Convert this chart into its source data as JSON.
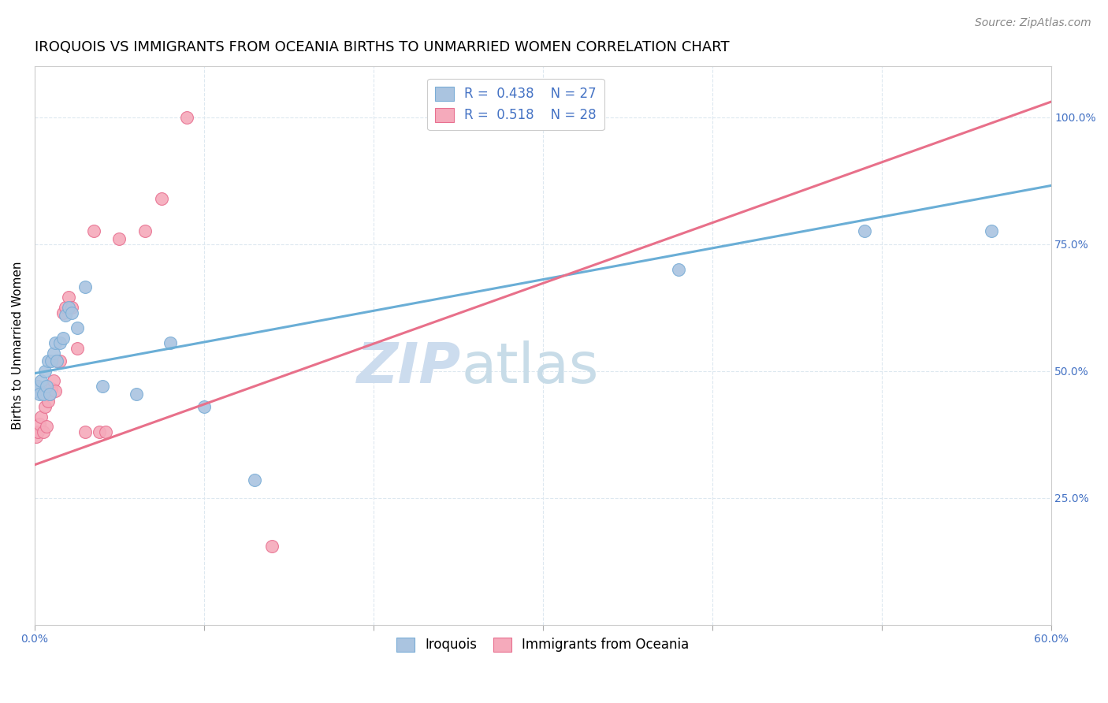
{
  "title": "IROQUOIS VS IMMIGRANTS FROM OCEANIA BIRTHS TO UNMARRIED WOMEN CORRELATION CHART",
  "source": "Source: ZipAtlas.com",
  "ylabel": "Births to Unmarried Women",
  "ytick_labels": [
    "25.0%",
    "50.0%",
    "75.0%",
    "100.0%"
  ],
  "ytick_values": [
    0.25,
    0.5,
    0.75,
    1.0
  ],
  "xlim": [
    0.0,
    0.6
  ],
  "ylim": [
    0.0,
    1.1
  ],
  "color_iroquois_fill": "#aac4e0",
  "color_iroquois_edge": "#7aadd6",
  "color_oceania_fill": "#f5aabb",
  "color_oceania_edge": "#e87090",
  "color_iroquois_line": "#6aaed6",
  "color_oceania_line": "#e8708a",
  "color_text_blue": "#4472c4",
  "watermark_color": "#ccdcee",
  "grid_color": "#dde8f0",
  "title_fontsize": 13,
  "axis_label_fontsize": 11,
  "tick_fontsize": 10,
  "legend_fontsize": 12,
  "source_fontsize": 10,
  "iroquois_x": [
    0.001,
    0.002,
    0.003,
    0.004,
    0.005,
    0.006,
    0.007,
    0.008,
    0.009,
    0.01,
    0.011,
    0.012,
    0.013,
    0.015,
    0.017,
    0.018,
    0.02,
    0.022,
    0.025,
    0.03,
    0.04,
    0.06,
    0.08,
    0.1,
    0.13,
    0.38,
    0.49,
    0.565
  ],
  "iroquois_y": [
    0.46,
    0.47,
    0.455,
    0.48,
    0.455,
    0.5,
    0.47,
    0.52,
    0.455,
    0.52,
    0.535,
    0.555,
    0.52,
    0.555,
    0.565,
    0.61,
    0.625,
    0.615,
    0.585,
    0.665,
    0.47,
    0.455,
    0.555,
    0.43,
    0.285,
    0.7,
    0.775,
    0.775
  ],
  "oceania_x": [
    0.001,
    0.002,
    0.003,
    0.004,
    0.005,
    0.006,
    0.007,
    0.008,
    0.009,
    0.01,
    0.011,
    0.012,
    0.013,
    0.015,
    0.017,
    0.018,
    0.02,
    0.022,
    0.025,
    0.03,
    0.035,
    0.038,
    0.042,
    0.05,
    0.065,
    0.075,
    0.09,
    0.14
  ],
  "oceania_y": [
    0.37,
    0.38,
    0.395,
    0.41,
    0.38,
    0.43,
    0.39,
    0.44,
    0.455,
    0.465,
    0.48,
    0.46,
    0.52,
    0.52,
    0.615,
    0.625,
    0.645,
    0.625,
    0.545,
    0.38,
    0.775,
    0.38,
    0.38,
    0.76,
    0.775,
    0.84,
    1.0,
    0.155
  ],
  "iroquois_line_x": [
    0.0,
    0.6
  ],
  "iroquois_line_y": [
    0.495,
    0.865
  ],
  "oceania_line_x": [
    0.0,
    0.6
  ],
  "oceania_line_y": [
    0.315,
    1.03
  ]
}
